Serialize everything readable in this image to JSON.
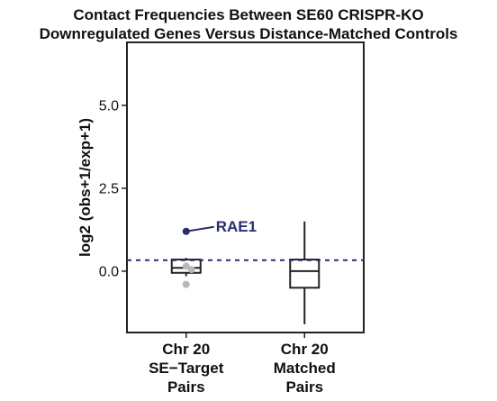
{
  "chart_data": {
    "type": "box",
    "title_lines": [
      "Contact Frequencies Between SE60 CRISPR-KO",
      "Downregulated Genes Versus Distance-Matched Controls"
    ],
    "ylabel": "log2 (obs+1/exp+1)",
    "ylim": [
      -1.85,
      6.9
    ],
    "yticks": [
      {
        "value": 0.0,
        "label": "0.0"
      },
      {
        "value": 2.5,
        "label": "2.5"
      },
      {
        "value": 5.0,
        "label": "5.0"
      }
    ],
    "categories": [
      {
        "lines": [
          "Chr 20",
          "SE−Target",
          "Pairs"
        ]
      },
      {
        "lines": [
          "Chr 20",
          "Matched",
          "Pairs"
        ]
      }
    ],
    "boxes": [
      {
        "category": 0,
        "q1": -0.05,
        "median": 0.1,
        "q3": 0.35,
        "whisker_low": -0.15,
        "whisker_high": 0.4
      },
      {
        "category": 1,
        "q1": -0.5,
        "median": 0.0,
        "q3": 0.35,
        "whisker_low": -1.6,
        "whisker_high": 1.5
      }
    ],
    "points": [
      {
        "category": 0,
        "y": 1.2,
        "color": "#2a2d6e",
        "label": "RAE1"
      },
      {
        "category": 0,
        "y": 0.15,
        "color": "#b8b8b8"
      },
      {
        "category": 0,
        "y": 0.05,
        "color": "#b8b8b8"
      },
      {
        "category": 0,
        "y": -0.4,
        "color": "#b8b8b8"
      }
    ],
    "reference_line": {
      "y": 0.33,
      "style": "dashed",
      "color": "#2a2d6e"
    },
    "grid": false,
    "legend": "none"
  }
}
